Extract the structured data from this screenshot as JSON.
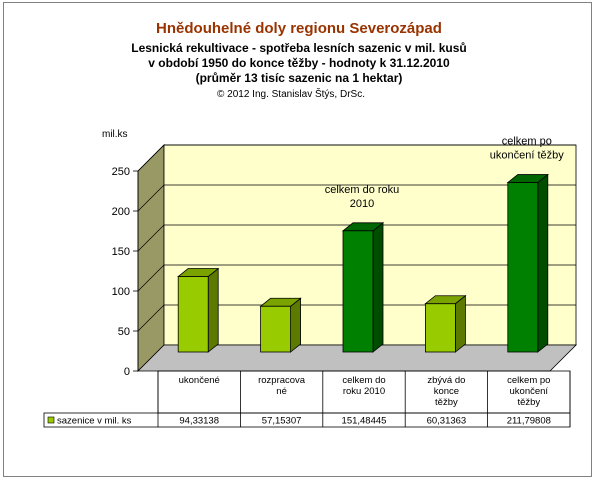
{
  "chart_data": {
    "type": "bar",
    "title": "Hnědouhelné doly regionu Severozápad",
    "subtitle_lines": [
      "Lesnická rekultivace - spotřeba lesních sazenic v mil. kusů",
      "v období 1950 do konce těžby - hodnoty k 31.12.2010",
      "(průměr 13 tisíc sazenic na 1 hektar)"
    ],
    "copyright": "© 2012 Ing. Stanislav Štýs, DrSc.",
    "ylabel": "mil.ks",
    "ylim": [
      0,
      250
    ],
    "yticks": [
      "0",
      "50",
      "100",
      "150",
      "200",
      "250"
    ],
    "grid": true,
    "categories": [
      [
        "ukončené"
      ],
      [
        "rozpracova",
        "né"
      ],
      [
        "celkem do",
        "roku 2010"
      ],
      [
        "zbývá do",
        "konce",
        "těžby"
      ],
      [
        "celkem po",
        "ukončení",
        "těžby"
      ]
    ],
    "series": [
      {
        "name": "sazenice v mil. ks",
        "values": [
          94.33138,
          57.15307,
          151.48445,
          60.31363,
          211.79808
        ],
        "value_labels": [
          "94,33138",
          "57,15307",
          "151,48445",
          "60,31363",
          "211,79808"
        ]
      }
    ],
    "annotations": [
      [
        "celkem do roku",
        "2010"
      ],
      [
        "celkem po",
        "ukončení těžby"
      ]
    ],
    "colors": {
      "light_bar": "#99cc00",
      "dark_bar": "#008000",
      "plot_wall": "#ffffcc",
      "plot_side": "#999966",
      "legend_key": "#99cc00"
    }
  }
}
